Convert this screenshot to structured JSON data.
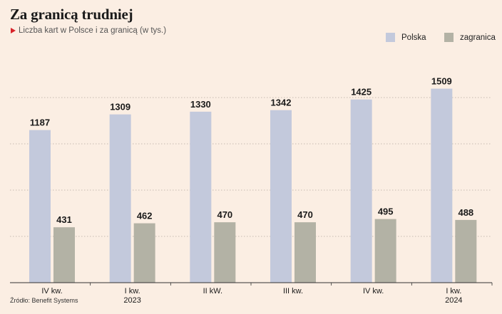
{
  "header": {
    "title": "Za granicą trudniej",
    "subtitle": "Liczba kart w Polsce i za granicą (w tys.)"
  },
  "footer": {
    "source": "Źródło: Benefit Systems"
  },
  "colors": {
    "background": "#fbeee3",
    "polska": "#c3c9dc",
    "zagranica": "#b3b2a5",
    "grid": "#555555",
    "accent": "#d8232a"
  },
  "chart_data": {
    "type": "bar",
    "title": "Za granicą trudniej",
    "subtitle": "Liczba kart w Polsce i za granicą (w tys.)",
    "categories": [
      [
        "IV kw."
      ],
      [
        "I kw.",
        "2023"
      ],
      [
        "II kW."
      ],
      [
        "III kw."
      ],
      [
        "IV kw."
      ],
      [
        "I kw.",
        "2024"
      ]
    ],
    "series": [
      {
        "name": "Polska",
        "values": [
          1187,
          1309,
          1330,
          1342,
          1425,
          1509
        ]
      },
      {
        "name": "zagranica",
        "values": [
          431,
          462,
          470,
          470,
          495,
          488
        ]
      }
    ],
    "xlabel": "",
    "ylabel": "",
    "ylim": [
      0,
      1800
    ],
    "grid": true,
    "legend": "top-right",
    "data_labels": true
  }
}
